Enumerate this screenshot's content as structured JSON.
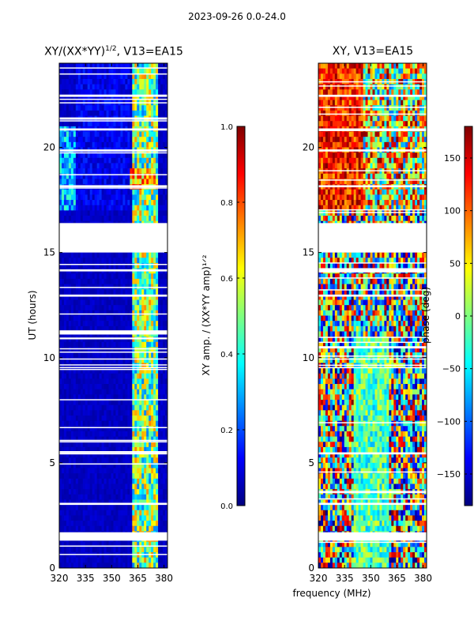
{
  "suptitle": "2023-09-26 0.0-24.0",
  "xlabel": "frequency (MHz)",
  "colors": {
    "jet": [
      "#00007f",
      "#0000ff",
      "#007fff",
      "#00ffff",
      "#7fff7f",
      "#ffff00",
      "#ff7f00",
      "#ff0000",
      "#7f0000"
    ],
    "blank_row": "#ffffff"
  },
  "chart_data": [
    {
      "type": "heatmap",
      "title": "XY/(XX*YY)¹ᐟ², V13=EA15",
      "xlabel": "frequency (MHz)",
      "ylabel": "UT (hours)",
      "xlim": [
        320,
        382
      ],
      "ylim": [
        0,
        24
      ],
      "xticks": [
        320,
        335,
        350,
        365,
        380
      ],
      "yticks": [
        0,
        5,
        10,
        15,
        20
      ],
      "colorbar": {
        "label": "XY amp. / (XX*YY amp)¹ᐟ²",
        "range": [
          0.0,
          1.0
        ],
        "ticks": [
          "0.0",
          "0.2",
          "0.4",
          "0.6",
          "0.8",
          "1.0"
        ],
        "tick_values": [
          0.0,
          0.2,
          0.4,
          0.6,
          0.8,
          1.0
        ]
      },
      "blank_hours": [
        [
          16.4,
          15.0
        ],
        [
          11.3,
          11.1
        ],
        [
          1.3,
          1.7
        ],
        [
          22.4,
          22.5
        ],
        [
          20.8,
          20.9
        ],
        [
          19.8,
          19.9
        ],
        [
          18.1,
          18.2
        ],
        [
          14.1,
          14.2
        ],
        [
          12.9,
          13.0
        ],
        [
          5.4,
          5.5
        ],
        [
          3.0,
          3.1
        ]
      ],
      "notes": "Low normalized amplitude (~0.05) across most of the band; elevated patchy values 0.3-0.8 in the 362-375 MHz range; stronger structure around UT 17-21."
    },
    {
      "type": "heatmap",
      "title": "XY, V13=EA15",
      "xlabel": "frequency (MHz)",
      "ylabel": "",
      "xlim": [
        320,
        382
      ],
      "ylim": [
        0,
        24
      ],
      "xticks": [
        320,
        335,
        350,
        365,
        380
      ],
      "yticks": [
        0,
        5,
        10,
        15,
        20
      ],
      "colorbar": {
        "label": "phase (deg)",
        "range": [
          -180,
          180
        ],
        "ticks": [
          "−150",
          "−100",
          "−50",
          "0",
          "50",
          "100",
          "150"
        ],
        "tick_values": [
          -150,
          -100,
          -50,
          0,
          50,
          100,
          150
        ]
      },
      "blank_hours": [
        [
          16.4,
          15.0
        ],
        [
          1.3,
          1.7
        ],
        [
          22.4,
          22.5
        ],
        [
          20.8,
          20.9
        ],
        [
          19.8,
          19.9
        ],
        [
          18.1,
          18.2
        ],
        [
          14.1,
          14.2
        ],
        [
          12.9,
          13.0
        ],
        [
          5.4,
          5.5
        ],
        [
          3.0,
          3.1
        ]
      ],
      "notes": "Phase varies widely (-180..180 deg); warm (red/orange) regions dominate around UT 17-24, mixed speckle at lower UT."
    }
  ]
}
